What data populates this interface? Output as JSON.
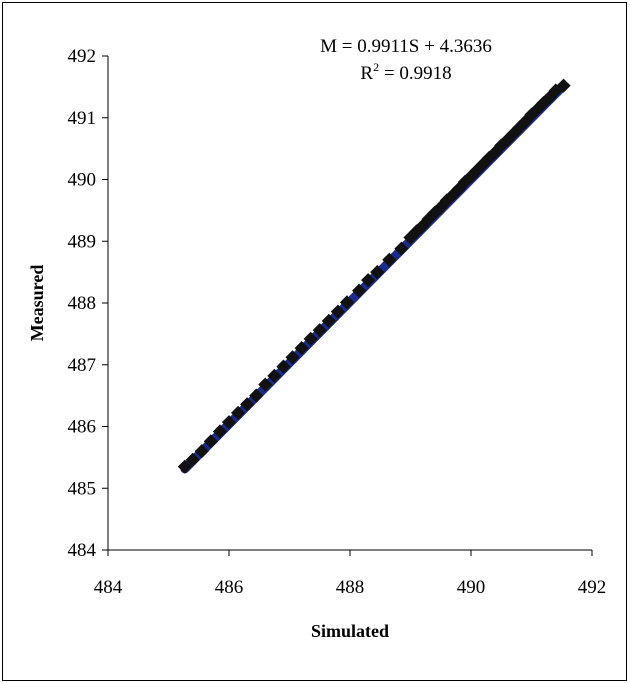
{
  "chart_data": {
    "type": "scatter",
    "xlabel": "Simulated",
    "ylabel": "Measured",
    "xlim": [
      484,
      492
    ],
    "ylim": [
      484,
      492
    ],
    "x_ticks": [
      "484",
      "486",
      "488",
      "490",
      "492"
    ],
    "y_ticks": [
      "484",
      "485",
      "486",
      "487",
      "488",
      "489",
      "490",
      "491",
      "492"
    ],
    "grid": false,
    "legend": "none",
    "annotation": {
      "equation": "M = 0.9911S + 4.3636",
      "r2_prefix": "R",
      "r2_exp": "2",
      "r2_value": " = 0.9918"
    },
    "trendline": {
      "slope": 0.9911,
      "intercept": 4.3636,
      "x_range": [
        485.27,
        491.53
      ]
    },
    "series": [
      {
        "marker": "square",
        "points": [
          [
            485.27,
            485.35
          ],
          [
            485.4,
            485.46
          ],
          [
            485.55,
            485.6
          ],
          [
            485.7,
            485.76
          ],
          [
            485.85,
            485.92
          ],
          [
            486.0,
            486.07
          ],
          [
            486.15,
            486.22
          ],
          [
            486.3,
            486.36
          ],
          [
            486.45,
            486.5
          ],
          [
            486.6,
            486.68
          ],
          [
            486.75,
            486.82
          ],
          [
            486.9,
            486.97
          ],
          [
            487.05,
            487.12
          ],
          [
            487.2,
            487.27
          ],
          [
            487.35,
            487.42
          ],
          [
            487.5,
            487.56
          ],
          [
            487.65,
            487.71
          ],
          [
            487.8,
            487.86
          ],
          [
            487.95,
            488.01
          ],
          [
            488.15,
            488.2
          ],
          [
            488.3,
            488.37
          ],
          [
            488.45,
            488.5
          ],
          [
            488.65,
            488.7
          ],
          [
            488.85,
            488.88
          ],
          [
            489.0,
            489.06
          ],
          [
            489.1,
            489.16
          ],
          [
            489.2,
            489.25
          ],
          [
            489.3,
            489.36
          ],
          [
            489.4,
            489.46
          ],
          [
            489.5,
            489.55
          ],
          [
            489.6,
            489.66
          ],
          [
            489.7,
            489.75
          ],
          [
            489.8,
            489.85
          ],
          [
            489.9,
            489.96
          ],
          [
            490.0,
            490.05
          ],
          [
            490.1,
            490.15
          ],
          [
            490.2,
            490.25
          ],
          [
            490.3,
            490.35
          ],
          [
            490.4,
            490.44
          ],
          [
            490.5,
            490.55
          ],
          [
            490.6,
            490.64
          ],
          [
            490.7,
            490.74
          ],
          [
            490.8,
            490.84
          ],
          [
            490.9,
            490.94
          ],
          [
            491.0,
            491.05
          ],
          [
            491.1,
            491.14
          ],
          [
            491.2,
            491.24
          ],
          [
            491.3,
            491.33
          ],
          [
            491.4,
            491.44
          ],
          [
            491.53,
            491.52
          ]
        ]
      }
    ]
  }
}
